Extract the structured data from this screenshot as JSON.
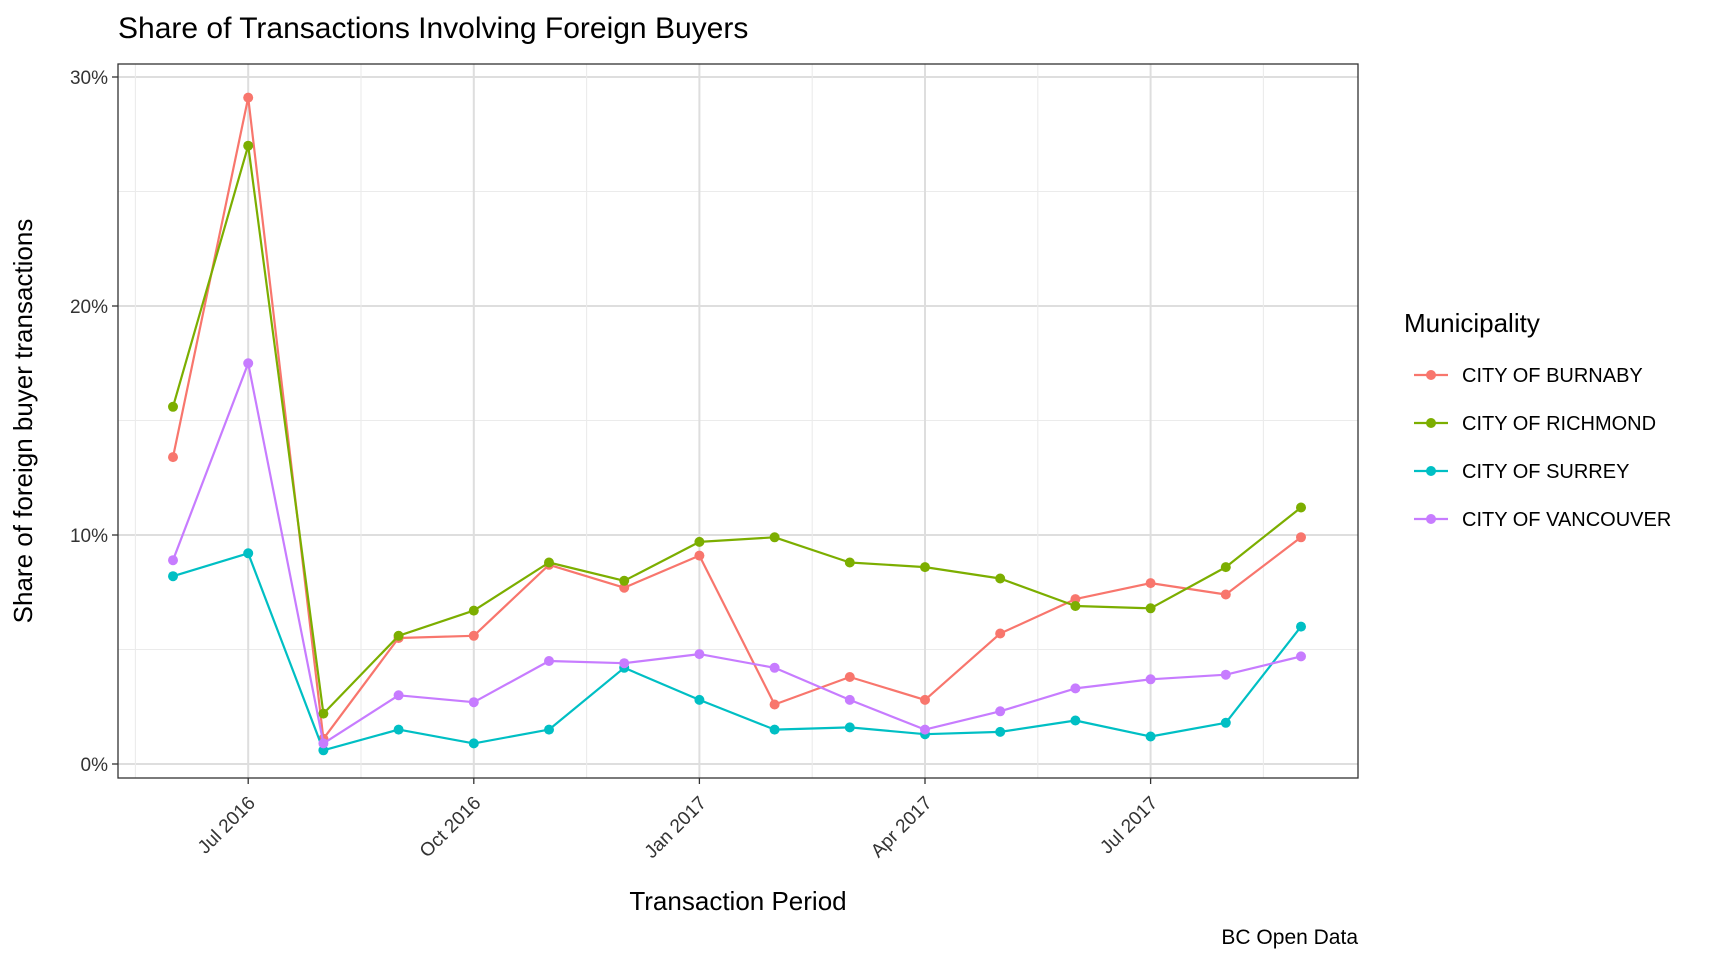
{
  "chart_data": {
    "type": "line",
    "title": "Share of Transactions Involving Foreign Buyers",
    "xlabel": "Transaction Period",
    "ylabel": "Share of foreign buyer transactions",
    "caption": "BC Open Data",
    "legend_title": "Municipality",
    "legend_position": "right",
    "grid": true,
    "x_ticks": [
      "Jul 2016",
      "Oct 2016",
      "Jan 2017",
      "Apr 2017",
      "Jul 2017"
    ],
    "y_ticks": [
      "0%",
      "10%",
      "20%",
      "30%"
    ],
    "ylim": [
      0,
      30
    ],
    "x": [
      "2016-06",
      "2016-07",
      "2016-08",
      "2016-09",
      "2016-10",
      "2016-11",
      "2016-12",
      "2017-01",
      "2017-02",
      "2017-03",
      "2017-04",
      "2017-05",
      "2017-06",
      "2017-07",
      "2017-08",
      "2017-09"
    ],
    "series": [
      {
        "name": "CITY OF BURNABY",
        "color": "#F8766D",
        "values": [
          13.4,
          29.1,
          1.1,
          5.5,
          5.6,
          8.7,
          7.7,
          9.1,
          2.6,
          3.8,
          2.8,
          5.7,
          7.2,
          7.9,
          7.4,
          9.9
        ]
      },
      {
        "name": "CITY OF RICHMOND",
        "color": "#7CAE00",
        "values": [
          15.6,
          27.0,
          2.2,
          5.6,
          6.7,
          8.8,
          8.0,
          9.7,
          9.9,
          8.8,
          8.6,
          8.1,
          6.9,
          6.8,
          8.6,
          11.2
        ]
      },
      {
        "name": "CITY OF SURREY",
        "color": "#00BFC4",
        "values": [
          8.2,
          9.2,
          0.6,
          1.5,
          0.9,
          1.5,
          4.2,
          2.8,
          1.5,
          1.6,
          1.3,
          1.4,
          1.9,
          1.2,
          1.8,
          6.0
        ]
      },
      {
        "name": "CITY OF VANCOUVER",
        "color": "#C77CFF",
        "values": [
          8.9,
          17.5,
          0.9,
          3.0,
          2.7,
          4.5,
          4.4,
          4.8,
          4.2,
          2.8,
          1.5,
          2.3,
          3.3,
          3.7,
          3.9,
          4.7
        ]
      }
    ]
  }
}
